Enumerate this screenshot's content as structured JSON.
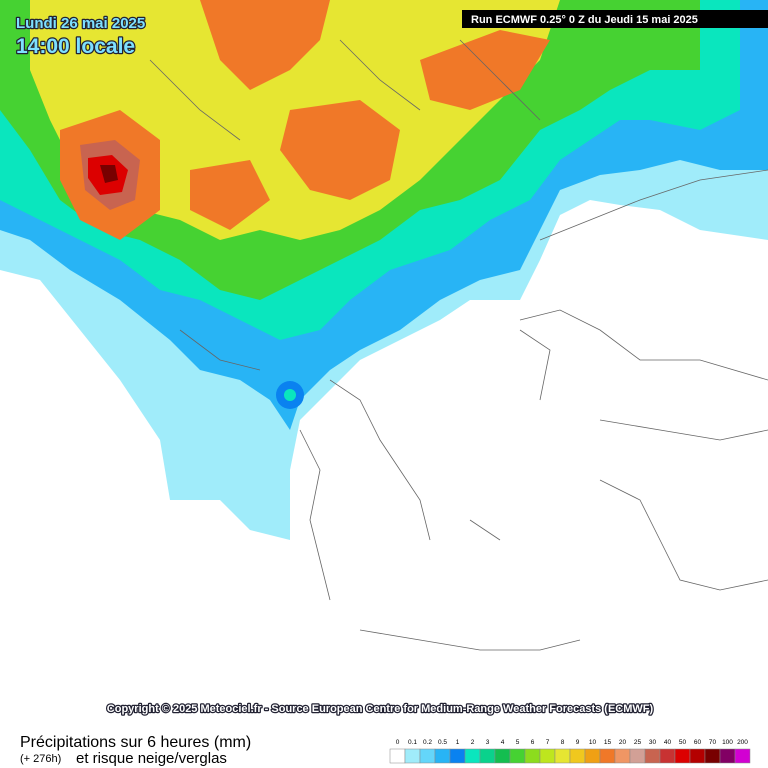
{
  "header": {
    "date": "Lundi 26 mai 2025",
    "time": "14:00 locale",
    "run": "Run ECMWF 0.25° 0 Z du Jeudi 15 mai 2025"
  },
  "copyright": "Copyright © 2025 Meteociel.fr - Source European Centre for Medium-Range Weather Forecasts (ECMWF)",
  "footer": {
    "title": "Précipitations sur 6 heures (mm)",
    "lead": "(+ 276h)",
    "subtitle": "et risque neige/verglas"
  },
  "legend": {
    "labels": [
      "0",
      "0.1",
      "0.2",
      "0.5",
      "1",
      "2",
      "3",
      "4",
      "5",
      "6",
      "7",
      "8",
      "9",
      "10",
      "15",
      "20",
      "25",
      "30",
      "40",
      "50",
      "60",
      "70",
      "100",
      "200"
    ],
    "colors": [
      "#ffffff",
      "#a0ecfa",
      "#64d6fa",
      "#28b4f5",
      "#0a82f0",
      "#0ae6be",
      "#0ad28c",
      "#14be50",
      "#46d232",
      "#8cdc1e",
      "#bee61e",
      "#e6e632",
      "#f0c81e",
      "#f0a014",
      "#f07828",
      "#f09664",
      "#d2a096",
      "#c86450",
      "#c83232",
      "#dc0000",
      "#b40000",
      "#780000",
      "#820064",
      "#d200d2"
    ]
  }
}
